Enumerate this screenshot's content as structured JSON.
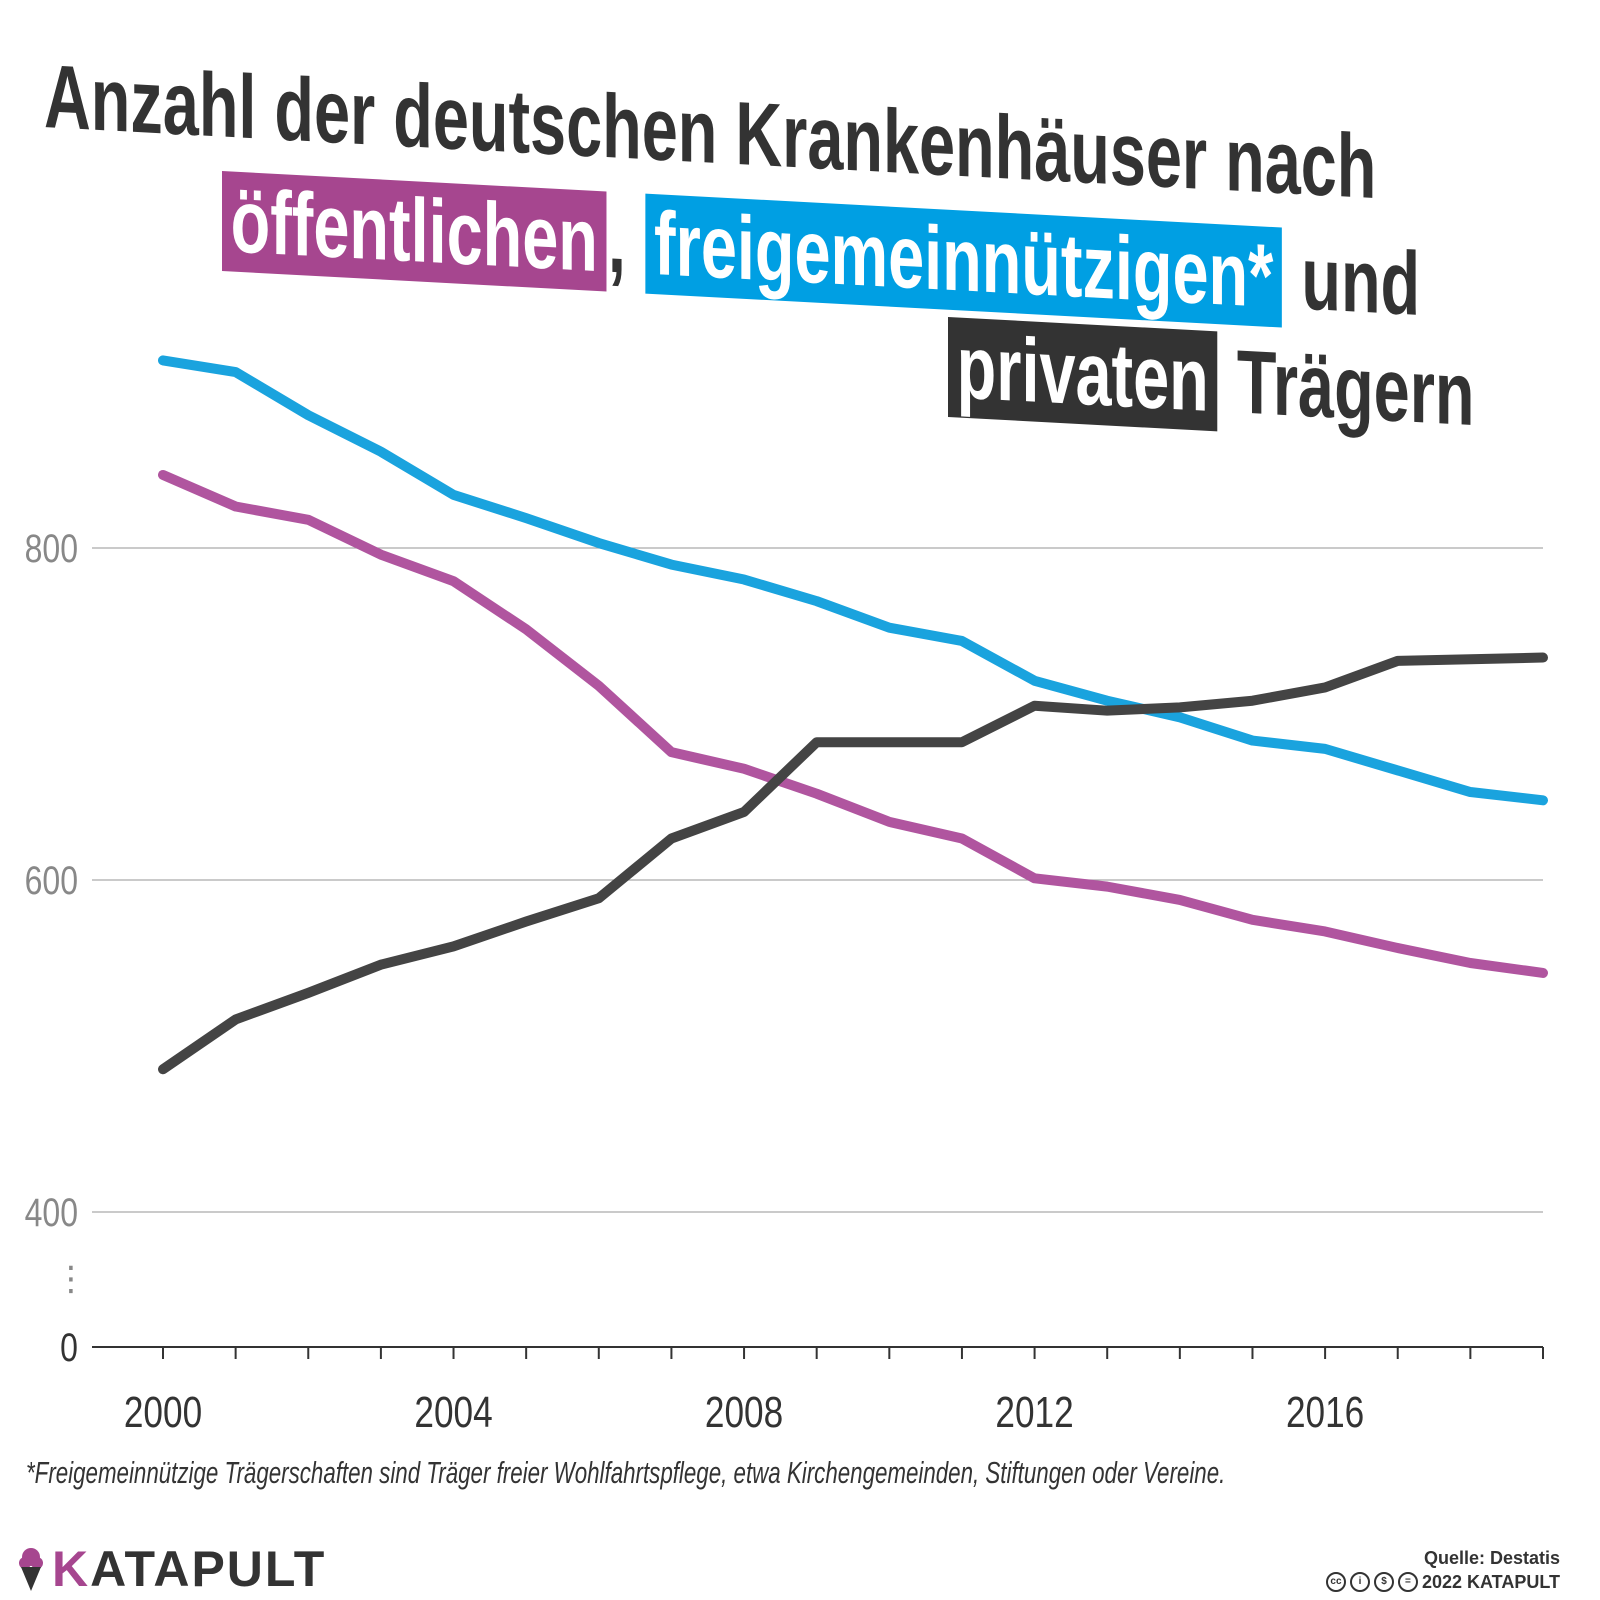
{
  "title": {
    "line1": "Anzahl der deutschen Krankenhäuser nach",
    "public_label": "öffentlichen",
    "comma": ",",
    "nonprofit_label": "freigemeinnützigen*",
    "und": "und",
    "private_label": "privaten",
    "traegern": "Trägern"
  },
  "footnote": "*Freigemeinnützige Trägerschaften sind Träger freier Wohlfahrtspflege, etwa Kirchengemeinden, Stiftungen oder Vereine.",
  "source": "Quelle: Destatis",
  "copyright": "2022 KATAPULT",
  "brand": {
    "first_letter": "K",
    "rest": "ATAPULT"
  },
  "colors": {
    "public": "#b0559f",
    "public_box": "#a6468f",
    "nonprofit": "#1aa3de",
    "nonprofit_box": "#009fe3",
    "private": "#444444",
    "private_box": "#333333",
    "text": "#333333",
    "axis_label": "#888888",
    "grid": "#aaaaaa"
  },
  "chart_data": {
    "type": "line",
    "x": [
      2000,
      2001,
      2002,
      2003,
      2004,
      2005,
      2006,
      2007,
      2008,
      2009,
      2010,
      2011,
      2012,
      2013,
      2014,
      2015,
      2016,
      2017,
      2018,
      2019
    ],
    "series": [
      {
        "name": "öffentlichen",
        "values": [
          844,
          825,
          817,
          796,
          780,
          751,
          717,
          677,
          667,
          652,
          635,
          625,
          601,
          596,
          588,
          576,
          569,
          559,
          550,
          544
        ]
      },
      {
        "name": "freigemeinnützigen*",
        "values": [
          913,
          906,
          880,
          858,
          832,
          818,
          803,
          790,
          781,
          768,
          752,
          744,
          720,
          708,
          698,
          684,
          679,
          666,
          653,
          648
        ]
      },
      {
        "name": "privaten",
        "values": [
          486,
          516,
          532,
          549,
          560,
          575,
          589,
          625,
          641,
          683,
          683,
          683,
          705,
          702,
          704,
          708,
          716,
          732,
          733,
          734
        ]
      }
    ],
    "xlabel": "",
    "ylabel": "",
    "xlim": [
      2000,
      2019
    ],
    "ylim": [
      0,
      1000
    ],
    "axis_break": {
      "from": 0,
      "to": 400,
      "marker": "⋮"
    },
    "y_ticks": [
      "0",
      "400",
      "600",
      "800"
    ],
    "x_ticks": [
      "2000",
      "2004",
      "2008",
      "2012",
      "2016"
    ],
    "grid": true
  }
}
